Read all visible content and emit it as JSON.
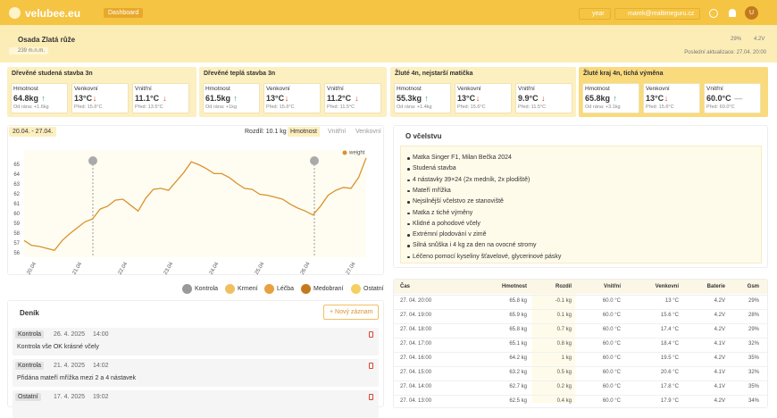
{
  "header": {
    "logo": "velubee.eu",
    "nav": "Dashboard",
    "period": "year",
    "user": "marek@realtimeguru.cz",
    "avatar": "U"
  },
  "apiary": {
    "name": "Osada Zlatá růže",
    "altitude": "239 m.n.m.",
    "gsm": "29%",
    "battery": "4.2V",
    "updated": "Poslední aktualizace: 27.04. 20:00"
  },
  "hives": [
    {
      "title": "Dřevěné studená stavba 3n",
      "metrics": [
        {
          "label": "Hmotnost",
          "value": "64.8kg",
          "trend": "↑",
          "sub": "Od rána: +1.6kg"
        },
        {
          "label": "Venkovní",
          "value": "13°C",
          "trend": "↓",
          "sub": "Před: 15.6°C"
        },
        {
          "label": "Vnitřní",
          "value": "11.1°C",
          "trend": "↓",
          "sub": "Před: 13.5°C"
        }
      ]
    },
    {
      "title": "Dřevěné teplá stavba 3n",
      "metrics": [
        {
          "label": "Hmotnost",
          "value": "61.5kg",
          "trend": "↑",
          "sub": "Od rána: +1kg"
        },
        {
          "label": "Venkovní",
          "value": "13°C",
          "trend": "↓",
          "sub": "Před: 15.6°C"
        },
        {
          "label": "Vnitřní",
          "value": "11.2°C",
          "trend": "↓",
          "sub": "Před: 11.5°C"
        }
      ]
    },
    {
      "title": "Žluté 4n, nejstarší matička",
      "metrics": [
        {
          "label": "Hmotnost",
          "value": "55.3kg",
          "trend": "↑",
          "sub": "Od rána: +1.4kg"
        },
        {
          "label": "Venkovní",
          "value": "13°C",
          "trend": "↓",
          "sub": "Před: 15.6°C"
        },
        {
          "label": "Vnitřní",
          "value": "9.9°C",
          "trend": "↓",
          "sub": "Před: 11.5°C"
        }
      ]
    },
    {
      "title": "Žluté kraj 4n, tichá výměna",
      "metrics": [
        {
          "label": "Hmotnost",
          "value": "65.8kg",
          "trend": "↑",
          "sub": "Od rána: +3.1kg"
        },
        {
          "label": "Venkovní",
          "value": "13°C",
          "trend": "↓",
          "sub": "Před: 15.6°C"
        },
        {
          "label": "Vnitřní",
          "value": "60.0°C",
          "trend": "—",
          "sub": "Před: 60.0°C"
        }
      ]
    }
  ],
  "chart_panel": {
    "range": "20.04. - 27.04.",
    "diff": "Rozdíl: 10.1 kg",
    "tabs": [
      "Hmotnost",
      "Vnitřní",
      "Venkovní"
    ]
  },
  "chart_data": {
    "type": "line",
    "categories": [
      null,
      "20.04",
      null,
      null,
      null,
      null,
      null,
      "21.04",
      null,
      null,
      null,
      null,
      null,
      "22.04",
      null,
      null,
      null,
      null,
      null,
      "23.04",
      null,
      null,
      null,
      null,
      null,
      "24.04",
      null,
      null,
      null,
      null,
      null,
      "25.04",
      null,
      null,
      null,
      null,
      null,
      "26.04",
      null,
      null,
      null,
      null,
      null,
      "27.04",
      null,
      null
    ],
    "series": [
      {
        "name": "weight",
        "color": "#d9922e",
        "values": [
          57.3,
          56.8,
          56.7,
          56.5,
          56.3,
          57.3,
          58.0,
          58.6,
          59.2,
          59.5,
          60.5,
          60.8,
          61.4,
          61.5,
          60.9,
          60.3,
          61.6,
          62.5,
          62.6,
          62.4,
          63.3,
          64.2,
          65.3,
          65.0,
          64.6,
          64.1,
          64.1,
          63.7,
          63.1,
          62.6,
          62.5,
          62.0,
          61.9,
          61.7,
          61.5,
          61.0,
          60.6,
          60.3,
          59.9,
          60.8,
          61.9,
          62.4,
          62.7,
          62.6,
          63.7,
          65.7
        ]
      }
    ],
    "ylim": [
      55.6,
      66.5
    ],
    "yticks": [
      56,
      57,
      58,
      59,
      60,
      61,
      62,
      63,
      64,
      65
    ],
    "grid": true,
    "legend": "top-right"
  },
  "event_legend": [
    "Kontrola",
    "Krmení",
    "Léčba",
    "Medobraní",
    "Ostatní"
  ],
  "diary": {
    "title": "Deník",
    "button": "+ Nový záznam",
    "entries": [
      {
        "type": "Kontrola",
        "date": "26. 4. 2025",
        "time": "14:00",
        "text": "Kontrola vše OK krásné včely"
      },
      {
        "type": "Kontrola",
        "date": "21. 4. 2025",
        "time": "14:02",
        "text": "Přidána mateří mřížka mezi 2 a 4 nástavek"
      },
      {
        "type": "Ostatní",
        "date": "17. 4. 2025",
        "time": "19:02",
        "text": ""
      }
    ]
  },
  "about": {
    "title": "O včelstvu",
    "items": [
      "Matka Singer F1, Milan Bečka 2024",
      "Studená stavba",
      "4 nástavky 39×24 (2x medník, 2x plodiště)",
      "Mateří mřížka",
      "Nejsilnější včelstvo ze stanoviště",
      "Matka z tiché výměny",
      "Klidné a pohodové včely",
      "Extrémní plodování v zimě",
      "Silná snůška i 4 kg za den na ovocné stromy",
      "Léčeno pomocí kyseliny šťavelové, glycerinové pásky"
    ]
  },
  "table": {
    "headers": [
      "Čas",
      "Hmotnost",
      "Rozdíl",
      "Vnitřní",
      "Venkovní",
      "Baterie",
      "Gsm"
    ],
    "rows": [
      [
        "27. 04. 20:00",
        "65.8 kg",
        "-0.1 kg",
        "60.0 °C",
        "13 °C",
        "4.2V",
        "29%"
      ],
      [
        "27. 04. 19:00",
        "65.9 kg",
        "0.1 kg",
        "60.0 °C",
        "15.6 °C",
        "4.2V",
        "28%"
      ],
      [
        "27. 04. 18:00",
        "65.8 kg",
        "0.7 kg",
        "60.0 °C",
        "17.4 °C",
        "4.2V",
        "29%"
      ],
      [
        "27. 04. 17:00",
        "65.1 kg",
        "0.8 kg",
        "60.0 °C",
        "18.4 °C",
        "4.1V",
        "32%"
      ],
      [
        "27. 04. 16:00",
        "64.2 kg",
        "1 kg",
        "60.0 °C",
        "19.5 °C",
        "4.2V",
        "35%"
      ],
      [
        "27. 04. 15:00",
        "63.2 kg",
        "0.5 kg",
        "60.0 °C",
        "20.6 °C",
        "4.1V",
        "32%"
      ],
      [
        "27. 04. 14:00",
        "62.7 kg",
        "0.2 kg",
        "60.0 °C",
        "17.8 °C",
        "4.1V",
        "35%"
      ],
      [
        "27. 04. 13:00",
        "62.5 kg",
        "0.4 kg",
        "60.0 °C",
        "17.9 °C",
        "4.2V",
        "34%"
      ]
    ]
  }
}
